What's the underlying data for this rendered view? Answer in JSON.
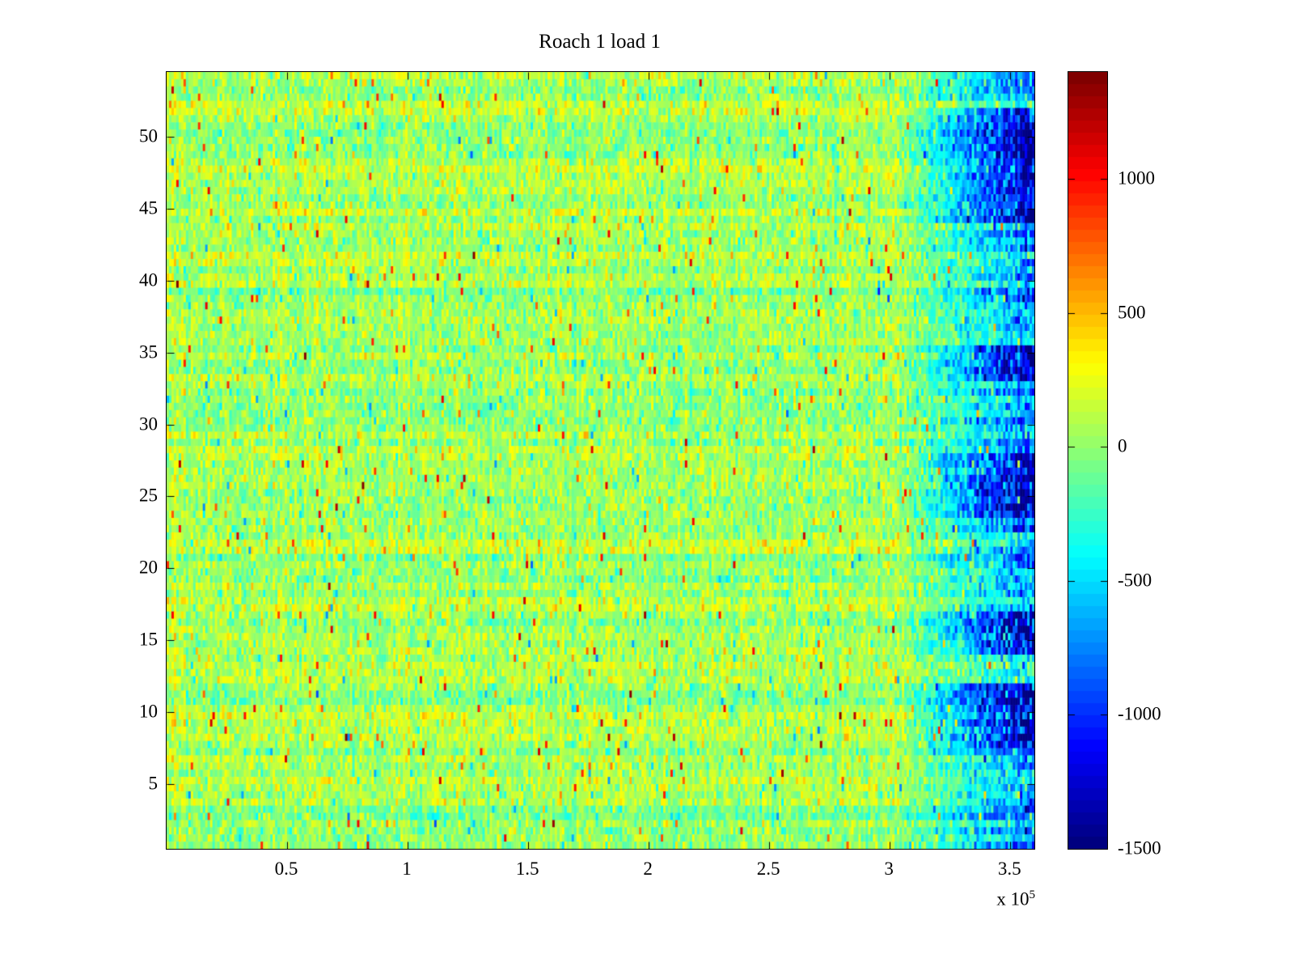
{
  "chart_data": {
    "type": "heatmap",
    "title": "Roach 1 load 1",
    "xlabel": "",
    "ylabel": "",
    "x_axis": {
      "min": 0,
      "max": 360000,
      "ticks": [
        50000,
        100000,
        150000,
        200000,
        250000,
        300000,
        350000
      ],
      "tick_labels": [
        "0.5",
        "1",
        "1.5",
        "2",
        "2.5",
        "3",
        "3.5"
      ],
      "exponent_label": {
        "prefix": "x 10",
        "exponent": "5"
      }
    },
    "y_axis": {
      "min": 0.5,
      "max": 54.5,
      "ticks": [
        5,
        10,
        15,
        20,
        25,
        30,
        35,
        40,
        45,
        50
      ],
      "tick_labels": [
        "5",
        "10",
        "15",
        "20",
        "25",
        "30",
        "35",
        "40",
        "45",
        "50"
      ]
    },
    "colorbar": {
      "min": -1500,
      "max": 1400,
      "ticks": [
        1000,
        500,
        0,
        -500,
        -1000,
        -1500
      ],
      "tick_labels": [
        "1000",
        "500",
        "0",
        "-500",
        "-1000",
        "-1500"
      ],
      "colormap": "jet",
      "bands": 64
    },
    "pattern": {
      "description": "Dense random field, mostly green-yellow values around -200..400 with sparse red/orange high spikes and cyan dips; values fall toward deep blue (about -1500) in a band near the right edge, strongest in several horizontal row bands.",
      "grid_rows": 108,
      "grid_cols": 360,
      "seed": 987654,
      "base_mean": 40,
      "base_std": 150,
      "row_offset_std": 70,
      "col_offset_std": 40,
      "spike_high": {
        "probability": 0.012,
        "min": 500,
        "max": 1100
      },
      "spike_low": {
        "probability": 0.01,
        "min": 300,
        "max": 700
      },
      "right_edge": {
        "start_frac": 0.84,
        "base_strength_min": 600,
        "base_strength_max": 1100,
        "deep_strength_min": 1400,
        "deep_strength_max": 1750,
        "deep_row_bands": [
          [
            7.5,
            12
          ],
          [
            14,
            17
          ],
          [
            23.5,
            28
          ],
          [
            33,
            35.5
          ],
          [
            44,
            52
          ]
        ]
      }
    }
  }
}
